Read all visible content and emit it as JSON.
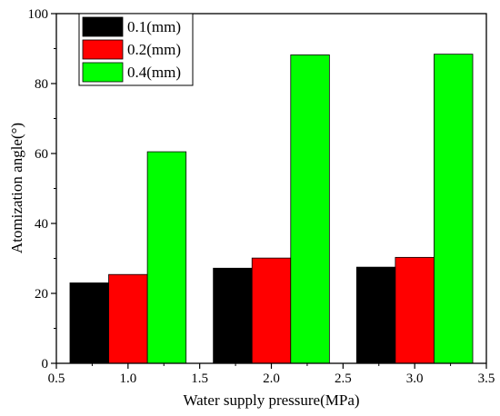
{
  "chart_data": {
    "type": "bar",
    "title": "",
    "xlabel": "Water supply pressure(MPa)",
    "ylabel": "Atomization angle(°)",
    "xlim": [
      0.5,
      3.5
    ],
    "ylim": [
      0,
      100
    ],
    "xticks": [
      "0.5",
      "1.0",
      "1.5",
      "2.0",
      "2.5",
      "3.0",
      "3.5"
    ],
    "yticks": [
      "0",
      "20",
      "40",
      "60",
      "80",
      "100"
    ],
    "grid": false,
    "legend_position": "top-left",
    "groups": [
      1.0,
      2.0,
      3.0
    ],
    "series": [
      {
        "name": "0.1(mm)",
        "color": "#000000",
        "values": [
          23.0,
          27.2,
          27.5
        ]
      },
      {
        "name": "0.2(mm)",
        "color": "#ff0000",
        "values": [
          25.4,
          30.1,
          30.3
        ]
      },
      {
        "name": "0.4(mm)",
        "color": "#00ff00",
        "values": [
          60.5,
          88.2,
          88.4
        ]
      }
    ]
  }
}
